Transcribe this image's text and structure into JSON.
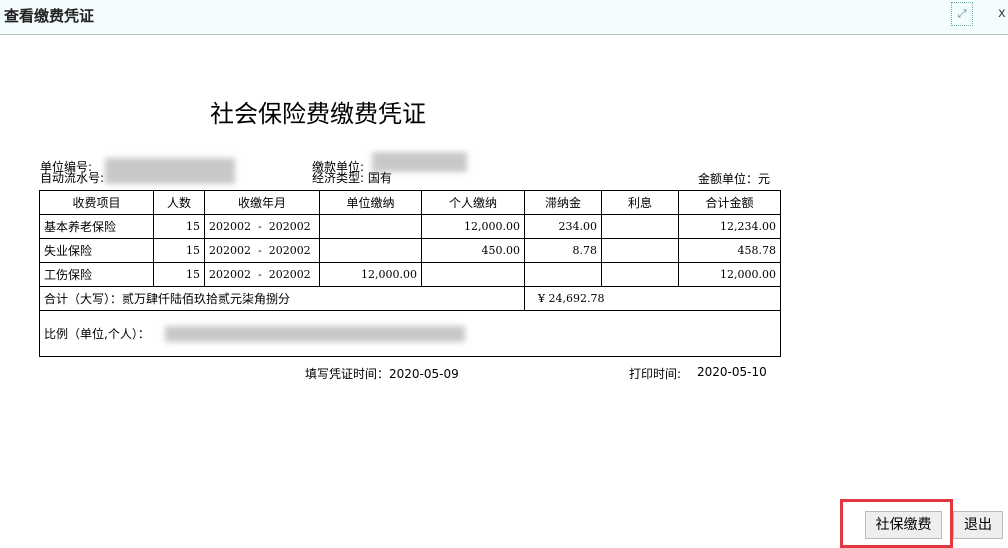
{
  "window": {
    "title": "查看缴费凭证",
    "max_icon": "maximize-icon",
    "close_label": "x"
  },
  "doc": {
    "title": "社会保险费缴费凭证",
    "unit_no_label": "单位编号:",
    "serial_label": "自动流水号:",
    "pay_unit_label": "缴款单位:",
    "econ_type_label": "经济类型:",
    "econ_type": "国有",
    "amount_unit": "金额单位：元",
    "headers": [
      "收费项目",
      "人数",
      "收缴年月",
      "单位缴纳",
      "个人缴纳",
      "滞纳金",
      "利息",
      "合计金额"
    ],
    "rows": [
      [
        "基本养老保险",
        "15",
        "202002  -  202002",
        "",
        "12,000.00",
        "234.00",
        "",
        "12,234.00"
      ],
      [
        "失业保险",
        "15",
        "202002  -  202002",
        "",
        "450.00",
        "8.78",
        "",
        "458.78"
      ],
      [
        "工伤保险",
        "15",
        "202002  -  202002",
        "12,000.00",
        "",
        "",
        "",
        "12,000.00"
      ]
    ],
    "total_label": "合计（大写）：贰万肆仟陆佰玖拾贰元柒角捌分",
    "total_amount": "¥  24,692.78",
    "ratio_label": "比例（单位,个人）：",
    "fill_time": "填写凭证时间：2020-05-09",
    "print_time_label": "打印时间:",
    "print_time": "2020-05-10"
  },
  "buttons": {
    "pay": "社保缴费",
    "exit": "退出"
  },
  "colors": {
    "highlight": "#e0383f"
  }
}
